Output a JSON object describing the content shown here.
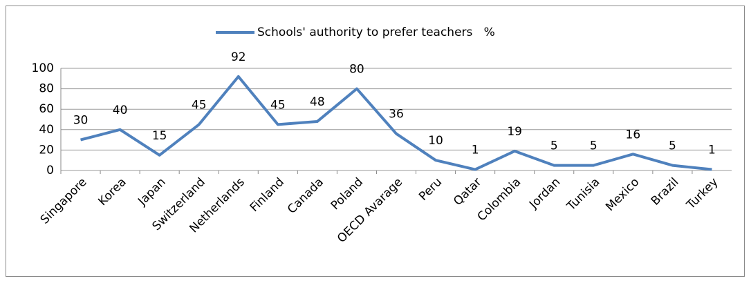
{
  "chart_data": {
    "type": "line",
    "categories": [
      "Singapore",
      "Korea",
      "Japan",
      "Switzerland",
      "Netherlands",
      "Finland",
      "Canada",
      "Poland",
      "OECD Avarage",
      "Peru",
      "Qatar",
      "Colombia",
      "Jordan",
      "Tunisia",
      "Mexico",
      "Brazil",
      "Turkey"
    ],
    "series": [
      {
        "name": "Schools' authority to prefer teachers   %",
        "color": "#4f81bd",
        "values": [
          30,
          40,
          15,
          45,
          92,
          45,
          48,
          80,
          36,
          10,
          1,
          19,
          5,
          5,
          16,
          5,
          1
        ]
      }
    ],
    "ylim": [
      0,
      100
    ],
    "yticks": [
      0,
      20,
      40,
      60,
      80,
      100
    ],
    "grid": true,
    "legend": "top"
  }
}
